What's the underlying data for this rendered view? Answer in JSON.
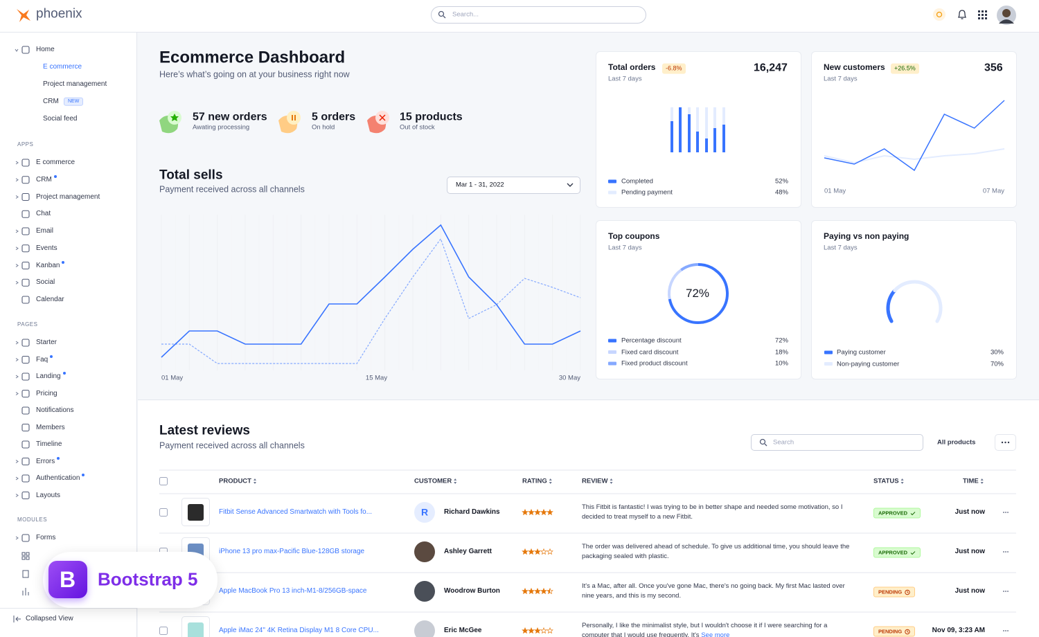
{
  "brand": "phoenix",
  "search_placeholder": "Search...",
  "sidebar": {
    "home": {
      "label": "Home",
      "items": [
        {
          "label": "E commerce",
          "active": true
        },
        {
          "label": "Project management"
        },
        {
          "label": "CRM",
          "badge": "NEW"
        },
        {
          "label": "Social feed"
        }
      ]
    },
    "sections": [
      {
        "title": "APPS",
        "items": [
          {
            "label": "E commerce",
            "caret": true
          },
          {
            "label": "CRM",
            "caret": true,
            "dot": true
          },
          {
            "label": "Project management",
            "caret": true
          },
          {
            "label": "Chat"
          },
          {
            "label": "Email",
            "caret": true
          },
          {
            "label": "Events",
            "caret": true
          },
          {
            "label": "Kanban",
            "caret": true,
            "dot": true
          },
          {
            "label": "Social",
            "caret": true
          },
          {
            "label": "Calendar"
          }
        ]
      },
      {
        "title": "PAGES",
        "items": [
          {
            "label": "Starter",
            "caret": true
          },
          {
            "label": "Faq",
            "caret": true,
            "dot": true
          },
          {
            "label": "Landing",
            "caret": true,
            "dot": true
          },
          {
            "label": "Pricing",
            "caret": true
          },
          {
            "label": "Notifications"
          },
          {
            "label": "Members"
          },
          {
            "label": "Timeline"
          },
          {
            "label": "Errors",
            "caret": true,
            "dot": true
          },
          {
            "label": "Authentication",
            "caret": true,
            "dot": true
          },
          {
            "label": "Layouts",
            "caret": true
          }
        ]
      },
      {
        "title": "MODULES",
        "items": [
          {
            "label": "Forms",
            "caret": true
          }
        ]
      }
    ],
    "collapse": "Collapsed View"
  },
  "promo": {
    "letter": "B",
    "text": "Bootstrap 5"
  },
  "header": {
    "title": "Ecommerce Dashboard",
    "subtitle": "Here’s what’s going on at your business right now"
  },
  "stats": [
    {
      "title": "57 new orders",
      "subtitle": "Awating processing"
    },
    {
      "title": "5 orders",
      "subtitle": "On hold"
    },
    {
      "title": "15 products",
      "subtitle": "Out of stock"
    }
  ],
  "total_sells": {
    "title": "Total sells",
    "subtitle": "Payment received across all channels",
    "date_range": "Mar 1 - 31, 2022",
    "x_labels": [
      "01 May",
      "15 May",
      "30 May"
    ],
    "ylim": [
      0,
      250
    ],
    "series": [
      {
        "color": "#3874ff",
        "values": [
          44,
          82,
          82,
          63,
          63,
          63,
          121,
          121,
          160,
          200,
          235,
          160,
          120,
          63,
          63,
          82
        ]
      },
      {
        "color": "#85a9ff",
        "dashed": true,
        "values": [
          63,
          63,
          35,
          35,
          35,
          35,
          35,
          35,
          100,
          160,
          215,
          100,
          120,
          158,
          145,
          130
        ]
      }
    ]
  },
  "total_orders": {
    "title": "Total orders",
    "badge": "-6.8%",
    "value": "16,247",
    "period": "Last 7 days",
    "ylim": [
      0,
      65
    ],
    "series": [
      {
        "name": "Completed",
        "color": "#3874ff",
        "values": [
          45,
          65,
          55,
          30,
          20,
          35,
          40
        ],
        "label": "52%"
      },
      {
        "name": "Pending payment",
        "color": "#e3ecff",
        "values": [
          20,
          0,
          10,
          35,
          45,
          30,
          25
        ],
        "label": "48%"
      }
    ]
  },
  "new_customers": {
    "title": "New customers",
    "badge": "+26.5%",
    "value": "356",
    "period": "Last 7 days",
    "x_labels": [
      "01 May",
      "07 May"
    ],
    "ylim": [
      0,
      130
    ],
    "series": [
      {
        "color": "#3874ff",
        "values": [
          32,
          23,
          45,
          14,
          95,
          75,
          115
        ]
      },
      {
        "color": "#e3ecff",
        "values": [
          35,
          25,
          35,
          30,
          35,
          38,
          45
        ]
      }
    ]
  },
  "top_coupons": {
    "title": "Top coupons",
    "period": "Last 7 days",
    "names": [
      "Percentage discount",
      "Fixed card discount",
      "Fixed product discount"
    ],
    "colors": [
      "#3874ff",
      "#c7d6ff",
      "#85a9ff"
    ],
    "values": [
      72,
      18,
      10
    ],
    "value_labels": [
      "72%",
      "18%",
      "10%"
    ]
  },
  "paying": {
    "title": "Paying vs non paying",
    "period": "Last 7 days",
    "names": [
      "Paying customer",
      "Non-paying customer"
    ],
    "colors": [
      "#3874ff",
      "#e3ecff"
    ],
    "values": [
      30,
      70
    ],
    "value_labels": [
      "30%",
      "70%"
    ]
  },
  "reviews": {
    "title": "Latest reviews",
    "subtitle": "Payment received across all channels",
    "search_placeholder": "Search",
    "filter": "All products",
    "columns": [
      "PRODUCT",
      "CUSTOMER",
      "RATING",
      "REVIEW",
      "STATUS",
      "TIME"
    ],
    "rows": [
      {
        "product": "Fitbit Sense Advanced Smartwatch with Tools fo...",
        "customer": "Richard Dawkins",
        "initial": "R",
        "rating": 5,
        "review": "This Fitbit is fantastic! I was trying to be in better shape and needed some motivation, so I decided to treat myself to a new Fitbit.",
        "status": "APPROVED",
        "time": "Just now"
      },
      {
        "product": "iPhone 13 pro max-Pacific Blue-128GB storage",
        "customer": "Ashley Garrett",
        "rating": 3,
        "review": "The order was delivered ahead of schedule. To give us additional time, you should leave the packaging sealed with plastic.",
        "status": "APPROVED",
        "time": "Just now"
      },
      {
        "product": "Apple MacBook Pro 13 inch-M1-8/256GB-space",
        "customer": "Woodrow Burton",
        "rating": 4.5,
        "review": "It's a Mac, after all. Once you've gone Mac, there's no going back. My first Mac lasted over nine years, and this is my second.",
        "status": "PENDING",
        "time": "Just now"
      },
      {
        "product": "Apple iMac 24\" 4K Retina Display M1 8 Core CPU...",
        "customer": "Eric McGee",
        "rating": 3,
        "review": "Personally, I like the minimalist style, but I wouldn't choose it if I were searching for a computer that I would use frequently. It's",
        "more": "See more",
        "status": "PENDING",
        "time": "Nov 09, 3:23 AM"
      }
    ]
  }
}
